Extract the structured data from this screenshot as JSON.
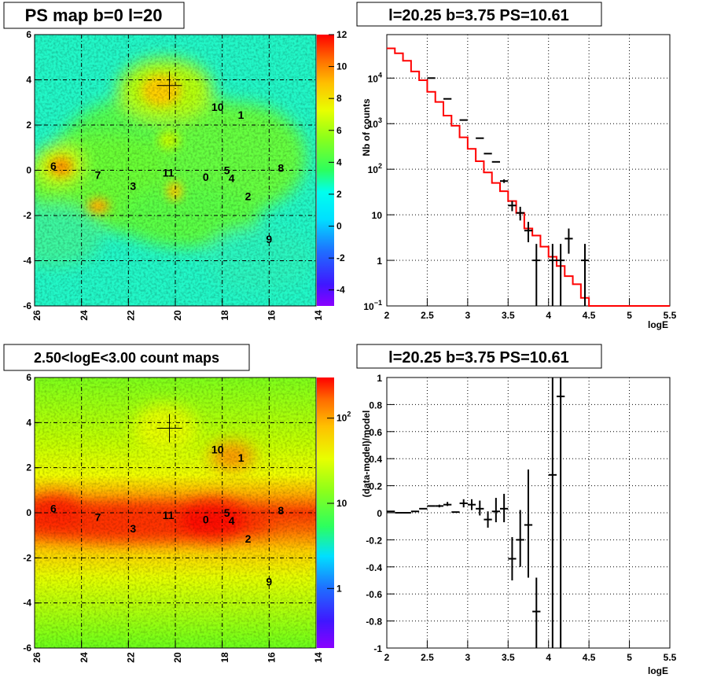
{
  "panels": {
    "ps_map": {
      "title": "PS map b=0 l=20",
      "x_ticks": [
        "26",
        "24",
        "22",
        "20",
        "18",
        "16",
        "14"
      ],
      "y_ticks": [
        "6",
        "4",
        "2",
        "0",
        "-2",
        "-4",
        "-6"
      ],
      "colorbar_ticks": [
        "12",
        "10",
        "8",
        "6",
        "4",
        "2",
        "0",
        "-2",
        "-4"
      ]
    },
    "spectrum": {
      "title": "l=20.25 b=3.75 PS=10.61",
      "xlabel": "logE",
      "ylabel": "Nb of counts",
      "x_ticks": [
        "2",
        "2.5",
        "3",
        "3.5",
        "4",
        "4.5",
        "5",
        "5.5"
      ],
      "y_ticks": [
        {
          "base": "10",
          "exp": "4"
        },
        {
          "base": "10",
          "exp": "3"
        },
        {
          "base": "10",
          "exp": "2"
        },
        {
          "base": "10",
          "exp": ""
        },
        {
          "base": "1",
          "exp": ""
        },
        {
          "base": "10",
          "exp": "−1"
        }
      ]
    },
    "count_map": {
      "title": "2.50<logE<3.00 count maps",
      "x_ticks": [
        "26",
        "24",
        "22",
        "20",
        "18",
        "16",
        "14"
      ],
      "y_ticks": [
        "6",
        "4",
        "2",
        "0",
        "-2",
        "-4",
        "-6"
      ],
      "colorbar_ticks": [
        {
          "base": "10",
          "exp": "2"
        },
        {
          "base": "10",
          "exp": ""
        },
        {
          "base": "1",
          "exp": ""
        }
      ]
    },
    "residual": {
      "title": "l=20.25 b=3.75 PS=10.61",
      "xlabel": "logE",
      "ylabel": "(data-model)/model",
      "x_ticks": [
        "2",
        "2.5",
        "3",
        "3.5",
        "4",
        "4.5",
        "5",
        "5.5"
      ],
      "y_ticks": [
        "1",
        "0.8",
        "0.6",
        "0.4",
        "0.2",
        "0",
        "-0.2",
        "-0.4",
        "-0.6",
        "-0.8",
        "-1"
      ]
    }
  },
  "chart_data": [
    {
      "type": "heatmap",
      "title": "PS map b=0 l=20",
      "xlim": [
        26,
        14
      ],
      "ylim": [
        -6,
        6
      ],
      "zlim": [
        -5,
        12
      ],
      "grid": true,
      "marker": {
        "l": 20.25,
        "b": 3.75
      },
      "sources": [
        {
          "label": "10",
          "l": 18.2,
          "b": 2.8
        },
        {
          "label": "1",
          "l": 17.2,
          "b": 2.45
        },
        {
          "label": "6",
          "l": 25.2,
          "b": 0.2
        },
        {
          "label": "7",
          "l": 23.3,
          "b": -0.2
        },
        {
          "label": "11",
          "l": 20.3,
          "b": -0.1
        },
        {
          "label": "0",
          "l": 18.7,
          "b": -0.3
        },
        {
          "label": "5",
          "l": 17.8,
          "b": 0
        },
        {
          "label": "4",
          "l": 17.6,
          "b": -0.35
        },
        {
          "label": "8",
          "l": 15.5,
          "b": 0.1
        },
        {
          "label": "3",
          "l": 21.8,
          "b": -0.7
        },
        {
          "label": "2",
          "l": 16.9,
          "b": -1.15
        },
        {
          "label": "9",
          "l": 16,
          "b": -3.05
        }
      ]
    },
    {
      "type": "line",
      "title": "l=20.25 b=3.75 PS=10.61",
      "xlabel": "logE",
      "ylabel": "Nb of counts",
      "xlim": [
        2,
        5.5
      ],
      "ylim": [
        0.1,
        90000
      ],
      "log_y": true,
      "grid": true,
      "bin_edges": [
        2,
        2.1,
        2.2,
        2.3,
        2.4,
        2.5,
        2.6,
        2.7,
        2.8,
        2.9,
        3,
        3.1,
        3.2,
        3.3,
        3.4,
        3.5,
        3.6,
        3.7,
        3.8,
        3.9,
        4,
        4.1,
        4.2,
        4.3,
        4.4,
        4.5,
        4.6,
        4.7,
        4.8,
        4.9,
        5,
        5.1,
        5.2,
        5.3,
        5.4,
        5.5
      ],
      "model": [
        45000,
        35000,
        24000,
        14000,
        9000,
        5000,
        3000,
        1500,
        900,
        500,
        280,
        150,
        85,
        50,
        33,
        20,
        11,
        5,
        3.5,
        2,
        1.2,
        0.75,
        0.45,
        0.3,
        0.15,
        0.1,
        0.1,
        0.1,
        0.1,
        0.1,
        0.1,
        0.1,
        0.1,
        0.1,
        0.1
      ],
      "data_points": [
        {
          "x": 2.55,
          "y": 10000,
          "ylo": 10000,
          "yhi": 10000
        },
        {
          "x": 2.75,
          "y": 3500,
          "ylo": 3500,
          "yhi": 3500
        },
        {
          "x": 2.95,
          "y": 1200,
          "ylo": 1200,
          "yhi": 1200
        },
        {
          "x": 3.15,
          "y": 480,
          "ylo": 480,
          "yhi": 480
        },
        {
          "x": 3.25,
          "y": 220,
          "ylo": 220,
          "yhi": 220
        },
        {
          "x": 3.35,
          "y": 145,
          "ylo": 145,
          "yhi": 145
        },
        {
          "x": 3.45,
          "y": 55,
          "ylo": 50,
          "yhi": 60
        },
        {
          "x": 3.55,
          "y": 16,
          "ylo": 12,
          "yhi": 20
        },
        {
          "x": 3.65,
          "y": 11,
          "ylo": 7.5,
          "yhi": 15
        },
        {
          "x": 3.75,
          "y": 4.5,
          "ylo": 2.5,
          "yhi": 7
        },
        {
          "x": 3.85,
          "y": 1,
          "ylo": 0.1,
          "yhi": 2.3
        },
        {
          "x": 4.05,
          "y": 1,
          "ylo": 0.1,
          "yhi": 2.3
        },
        {
          "x": 4.15,
          "y": 1,
          "ylo": 0.1,
          "yhi": 2.3
        },
        {
          "x": 4.25,
          "y": 3,
          "ylo": 1.4,
          "yhi": 5
        },
        {
          "x": 4.45,
          "y": 1,
          "ylo": 0.1,
          "yhi": 2.3
        }
      ]
    },
    {
      "type": "heatmap",
      "title": "2.50<logE<3.00 count maps",
      "xlim": [
        26,
        14
      ],
      "ylim": [
        -6,
        6
      ],
      "zlim": [
        0.2,
        300
      ],
      "log_z": true,
      "grid": true,
      "marker": {
        "l": 20.25,
        "b": 3.75
      },
      "sources": [
        {
          "label": "10",
          "l": 18.2,
          "b": 2.8
        },
        {
          "label": "1",
          "l": 17.2,
          "b": 2.45
        },
        {
          "label": "6",
          "l": 25.2,
          "b": 0.2
        },
        {
          "label": "7",
          "l": 23.3,
          "b": -0.2
        },
        {
          "label": "11",
          "l": 20.3,
          "b": -0.1
        },
        {
          "label": "0",
          "l": 18.7,
          "b": -0.3
        },
        {
          "label": "5",
          "l": 17.8,
          "b": 0
        },
        {
          "label": "4",
          "l": 17.6,
          "b": -0.35
        },
        {
          "label": "8",
          "l": 15.5,
          "b": 0.1
        },
        {
          "label": "3",
          "l": 21.8,
          "b": -0.7
        },
        {
          "label": "2",
          "l": 16.9,
          "b": -1.15
        },
        {
          "label": "9",
          "l": 16,
          "b": -3.05
        }
      ]
    },
    {
      "type": "scatter",
      "title": "l=20.25 b=3.75 PS=10.61",
      "xlabel": "logE",
      "ylabel": "(data-model)/model",
      "xlim": [
        2,
        5.5
      ],
      "ylim": [
        -1,
        1
      ],
      "grid": true,
      "points": [
        {
          "x": 2.05,
          "y": 0.01,
          "ylo": 0.01,
          "yhi": 0.01
        },
        {
          "x": 2.15,
          "y": 0,
          "ylo": 0,
          "yhi": 0
        },
        {
          "x": 2.25,
          "y": 0,
          "ylo": 0,
          "yhi": 0
        },
        {
          "x": 2.35,
          "y": 0.01,
          "ylo": 0.01,
          "yhi": 0.01
        },
        {
          "x": 2.45,
          "y": 0.03,
          "ylo": 0.03,
          "yhi": 0.03
        },
        {
          "x": 2.55,
          "y": 0.05,
          "ylo": 0.05,
          "yhi": 0.05
        },
        {
          "x": 2.65,
          "y": 0.05,
          "ylo": 0.04,
          "yhi": 0.06
        },
        {
          "x": 2.75,
          "y": 0.06,
          "ylo": 0.05,
          "yhi": 0.08
        },
        {
          "x": 2.85,
          "y": 0.005,
          "ylo": 0.005,
          "yhi": 0.005
        },
        {
          "x": 2.95,
          "y": 0.07,
          "ylo": 0.04,
          "yhi": 0.1
        },
        {
          "x": 3.05,
          "y": 0.06,
          "ylo": 0.02,
          "yhi": 0.1
        },
        {
          "x": 3.15,
          "y": 0.03,
          "ylo": -0.02,
          "yhi": 0.09
        },
        {
          "x": 3.25,
          "y": -0.05,
          "ylo": -0.11,
          "yhi": 0.01
        },
        {
          "x": 3.35,
          "y": 0.01,
          "ylo": -0.07,
          "yhi": 0.11
        },
        {
          "x": 3.45,
          "y": 0.03,
          "ylo": -0.07,
          "yhi": 0.14
        },
        {
          "x": 3.55,
          "y": -0.34,
          "ylo": -0.5,
          "yhi": -0.18
        },
        {
          "x": 3.65,
          "y": -0.2,
          "ylo": -0.4,
          "yhi": 0.02
        },
        {
          "x": 3.75,
          "y": -0.09,
          "ylo": -0.48,
          "yhi": 0.32
        },
        {
          "x": 3.85,
          "y": -0.73,
          "ylo": -1,
          "yhi": -0.48
        },
        {
          "x": 4.05,
          "y": 0.28,
          "ylo": -1,
          "yhi": 1
        },
        {
          "x": 4.15,
          "y": 0.86,
          "ylo": -1,
          "yhi": 1
        }
      ]
    }
  ]
}
